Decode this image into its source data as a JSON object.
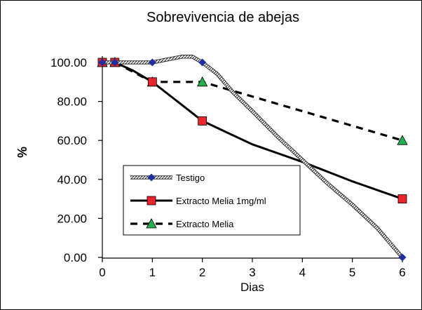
{
  "chart_data": {
    "type": "line",
    "title": "Sobrevivencia de abejas",
    "xlabel": "Dias",
    "ylabel": "%",
    "xlim": [
      0,
      6
    ],
    "ylim": [
      0,
      100
    ],
    "x_ticks": [
      "0",
      "1",
      "2",
      "3",
      "4",
      "5",
      "6"
    ],
    "y_ticks": [
      "0.00",
      "20.00",
      "40.00",
      "60.00",
      "80.00",
      "100.00"
    ],
    "grid": false,
    "legend_position": "bottom-left",
    "series": [
      {
        "name": "Testigo",
        "color": "#1f2f9e",
        "line_style": "hatched",
        "marker": "diamond",
        "marker_points": [
          {
            "x": 0,
            "y": 100
          },
          {
            "x": 0.25,
            "y": 100
          },
          {
            "x": 1,
            "y": 100
          },
          {
            "x": 2,
            "y": 100
          },
          {
            "x": 6,
            "y": 0
          }
        ],
        "curve": [
          {
            "x": 0,
            "y": 100
          },
          {
            "x": 0.25,
            "y": 100
          },
          {
            "x": 1,
            "y": 100
          },
          {
            "x": 1.3,
            "y": 101.5
          },
          {
            "x": 1.6,
            "y": 103
          },
          {
            "x": 1.8,
            "y": 103
          },
          {
            "x": 2,
            "y": 100
          },
          {
            "x": 2.3,
            "y": 94
          },
          {
            "x": 2.6,
            "y": 85
          },
          {
            "x": 3,
            "y": 75
          },
          {
            "x": 3.5,
            "y": 62
          },
          {
            "x": 4,
            "y": 50
          },
          {
            "x": 4.5,
            "y": 38
          },
          {
            "x": 5,
            "y": 27
          },
          {
            "x": 5.5,
            "y": 15
          },
          {
            "x": 6,
            "y": 0
          }
        ]
      },
      {
        "name": "Extracto Melia 1mg/ml",
        "color": "#000000",
        "marker_color": "#e8262b",
        "line_style": "solid",
        "marker": "square",
        "marker_points": [
          {
            "x": 0,
            "y": 100
          },
          {
            "x": 0.25,
            "y": 100
          },
          {
            "x": 1,
            "y": 90
          },
          {
            "x": 2,
            "y": 70
          },
          {
            "x": 6,
            "y": 30
          }
        ],
        "curve": [
          {
            "x": 0,
            "y": 100
          },
          {
            "x": 0.25,
            "y": 100
          },
          {
            "x": 0.6,
            "y": 96
          },
          {
            "x": 1,
            "y": 90
          },
          {
            "x": 1.4,
            "y": 82
          },
          {
            "x": 1.7,
            "y": 76
          },
          {
            "x": 2,
            "y": 70
          },
          {
            "x": 2.5,
            "y": 64
          },
          {
            "x": 3,
            "y": 58
          },
          {
            "x": 4,
            "y": 49
          },
          {
            "x": 5,
            "y": 39
          },
          {
            "x": 6,
            "y": 30
          }
        ]
      },
      {
        "name": "Extracto Melia",
        "color": "#000000",
        "marker_color": "#22b14c",
        "line_style": "dashed",
        "marker": "triangle",
        "marker_points": [
          {
            "x": 0,
            "y": 100
          },
          {
            "x": 0.25,
            "y": 100
          },
          {
            "x": 1,
            "y": 90
          },
          {
            "x": 2,
            "y": 90
          },
          {
            "x": 6,
            "y": 60
          }
        ],
        "curve": [
          {
            "x": 0,
            "y": 100
          },
          {
            "x": 0.25,
            "y": 100
          },
          {
            "x": 1,
            "y": 90
          },
          {
            "x": 2,
            "y": 90
          },
          {
            "x": 6,
            "y": 60
          }
        ]
      }
    ]
  }
}
